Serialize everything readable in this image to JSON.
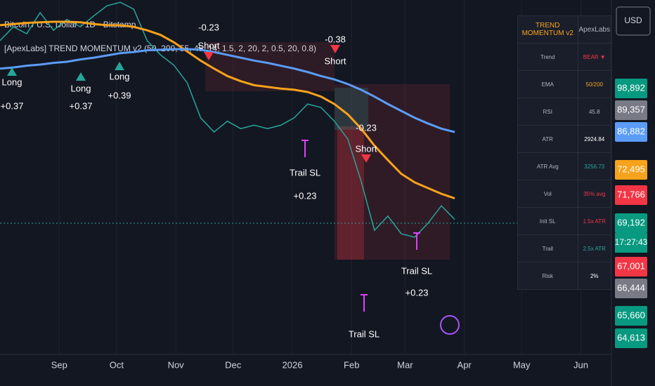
{
  "chart_data": {
    "type": "line",
    "symbol": "Bitcoin / U.S. Dollar · 1D · Bitstamp",
    "indicator": "[ApexLabs] TREND MOMENTUM v2 (50, 200, 55, 45, 14, 1.5, 2, 20, 2, 0.5, 20, 0.8)",
    "x": [
      0,
      7,
      14,
      21,
      28,
      35,
      42,
      49,
      56,
      63,
      70,
      77,
      84,
      91,
      98,
      105,
      112,
      119,
      126,
      133,
      140,
      147,
      154,
      161,
      168,
      175,
      182,
      189,
      196,
      203,
      210,
      217,
      224,
      231,
      238
    ],
    "series": [
      {
        "color": "#26a69a",
        "values": [
          100900,
          103300,
          102100,
          105800,
          102700,
          104600,
          103300,
          105200,
          107000,
          107600,
          106400,
          100900,
          98400,
          96600,
          93500,
          87400,
          84900,
          86800,
          85500,
          86100,
          85500,
          86100,
          87400,
          89800,
          89200,
          86800,
          83700,
          76300,
          67700,
          70200,
          67100,
          66500,
          68950,
          72000,
          69600
        ]
      },
      {
        "color": "#f7a21b",
        "values": [
          103600,
          103800,
          104000,
          104100,
          104200,
          104200,
          104100,
          103800,
          103600,
          103600,
          103300,
          102700,
          101900,
          100600,
          99000,
          97400,
          96000,
          94700,
          93800,
          93100,
          92800,
          92500,
          92300,
          91900,
          91100,
          89800,
          88000,
          85500,
          82500,
          80000,
          77600,
          76100,
          75100,
          74100,
          73300
        ]
      },
      {
        "color": "#5b9cf6",
        "values": [
          96000,
          96200,
          96500,
          96700,
          97000,
          97200,
          97600,
          97900,
          98300,
          98700,
          98900,
          99200,
          99300,
          99400,
          99400,
          99300,
          98900,
          98400,
          97900,
          97400,
          97000,
          96500,
          96000,
          95400,
          94700,
          94100,
          93300,
          92300,
          91100,
          89800,
          88600,
          87400,
          86400,
          85500,
          84900
        ]
      }
    ],
    "xlim": [
      0,
      320
    ],
    "xticks": [
      {
        "value": 31,
        "label": "Sep"
      },
      {
        "value": 61,
        "label": "Oct"
      },
      {
        "value": 92,
        "label": "Nov"
      },
      {
        "value": 122,
        "label": "Dec"
      },
      {
        "value": 153,
        "label": "2026"
      },
      {
        "value": 184,
        "label": "Feb"
      },
      {
        "value": 212,
        "label": "Mar"
      },
      {
        "value": 243,
        "label": "Apr"
      },
      {
        "value": 273,
        "label": "May"
      },
      {
        "value": 304,
        "label": "Jun"
      }
    ],
    "ylim": [
      46000,
      108000
    ],
    "currency": "USD",
    "countdown": "17:27:43",
    "price_labels": [
      {
        "label": "98,892",
        "color": "#089981"
      },
      {
        "label": "89,357",
        "color": "#787b86"
      },
      {
        "label": "86,882",
        "color": "#5b9cf6"
      },
      {
        "label": "72,495",
        "color": "#f7a21b"
      },
      {
        "label": "71,766",
        "color": "#f23645"
      },
      {
        "label": "69,192",
        "color": "#089981"
      },
      {
        "label": "67,001",
        "color": "#f23645"
      },
      {
        "label": "66,444",
        "color": "#787b86"
      },
      {
        "label": "65,660",
        "color": "#089981"
      },
      {
        "label": "64,613",
        "color": "#089981"
      }
    ],
    "annotations": [
      {
        "text": "-0.23",
        "color": "#ffffff"
      },
      {
        "text": "Short",
        "color": "#ffffff"
      },
      {
        "text": "-0.38",
        "color": "#ffffff"
      },
      {
        "text": "Short",
        "color": "#ffffff"
      },
      {
        "text": "-0.23",
        "color": "#ffffff"
      },
      {
        "text": "Short",
        "color": "#ffffff"
      },
      {
        "text": "Trail SL",
        "color": "#ffffff"
      },
      {
        "text": "+0.23",
        "color": "#ffffff"
      },
      {
        "text": "Trail SL",
        "color": "#ffffff"
      },
      {
        "text": "Trail SL",
        "color": "#ffffff"
      },
      {
        "text": "+0.23",
        "color": "#ffffff"
      },
      {
        "text": "Long",
        "color": "#ffffff"
      },
      {
        "text": "+0.37",
        "color": "#ffffff"
      },
      {
        "text": "Long",
        "color": "#ffffff"
      },
      {
        "text": "+0.37",
        "color": "#ffffff"
      },
      {
        "text": "Long",
        "color": "#ffffff"
      },
      {
        "text": "+0.39",
        "color": "#ffffff"
      }
    ],
    "table": {
      "title": "TREND MOMENTUM v2",
      "brand": "ApexLabs",
      "rows": [
        [
          "Trend",
          "BEAR ▼"
        ],
        [
          "EMA",
          "50/200"
        ],
        [
          "RSI",
          "45.8"
        ],
        [
          "ATR",
          "2924.84"
        ],
        [
          "ATR Avg",
          "3256.73"
        ],
        [
          "Vol",
          "35% avg"
        ],
        [
          "Init SL",
          "1.5x ATR"
        ],
        [
          "Trail",
          "2.5x ATR"
        ],
        [
          "Risk",
          "2%"
        ]
      ]
    }
  }
}
